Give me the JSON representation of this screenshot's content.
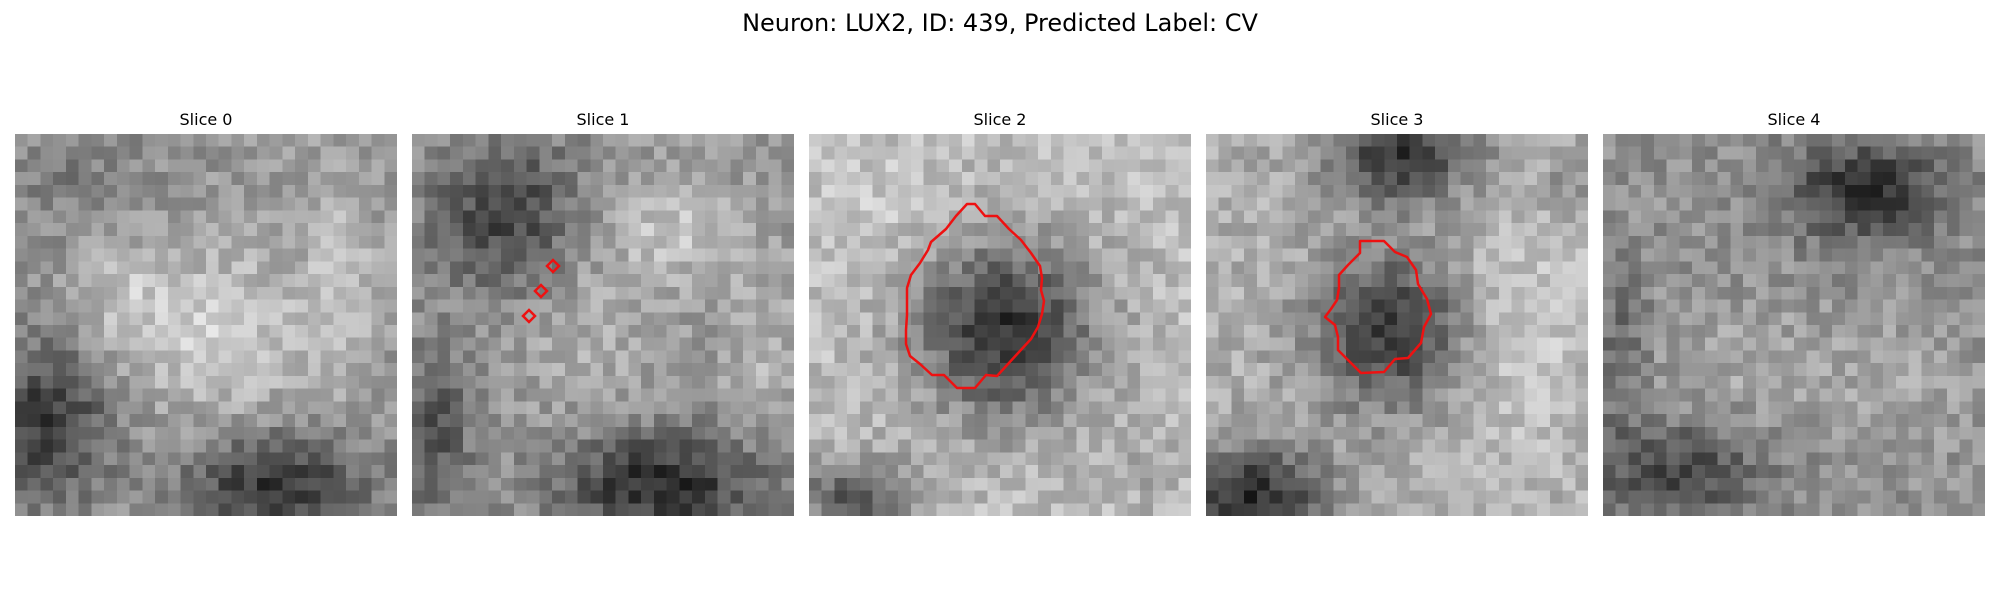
{
  "figure": {
    "title": "Neuron: LUX2, ID: 439, Predicted Label: CV",
    "outline_color": "#ee1111"
  },
  "panels": [
    {
      "title": "Slice 0",
      "image": "grayscale-patch",
      "dark_regions": [
        "left-lower",
        "bottom-right"
      ],
      "bright_regions": [
        "center"
      ]
    },
    {
      "title": "Slice 1",
      "image": "grayscale-patch",
      "markers": 3,
      "dark_regions": [
        "top-left",
        "bottom-right",
        "left-lower"
      ]
    },
    {
      "title": "Slice 2",
      "image": "grayscale-patch",
      "outline": "polygon",
      "dark_regions": [
        "center",
        "bottom-left"
      ]
    },
    {
      "title": "Slice 3",
      "image": "grayscale-patch",
      "outline": "polygon",
      "dark_regions": [
        "center",
        "top-center",
        "bottom-left"
      ]
    },
    {
      "title": "Slice 4",
      "image": "grayscale-patch",
      "dark_regions": [
        "top-right",
        "bottom-left"
      ]
    }
  ]
}
